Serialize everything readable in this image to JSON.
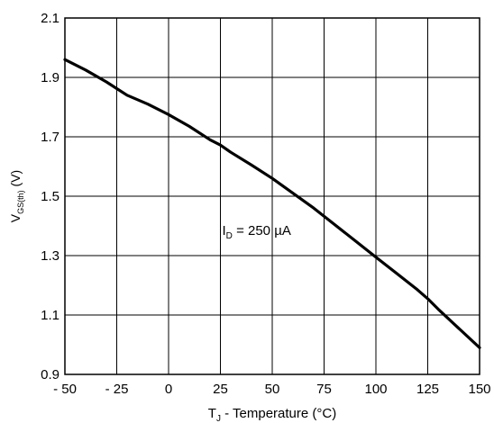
{
  "chart_data": {
    "type": "line",
    "xlim": [
      -50,
      150
    ],
    "ylim": [
      0.9,
      2.1
    ],
    "x_ticks": [
      -50,
      -25,
      0,
      25,
      50,
      75,
      100,
      125,
      150
    ],
    "y_ticks": [
      0.9,
      1.1,
      1.3,
      1.5,
      1.7,
      1.9,
      2.1
    ],
    "x_tick_labels": [
      "- 50",
      "- 25",
      "0",
      "25",
      "50",
      "75",
      "100",
      "125",
      "150"
    ],
    "y_tick_labels": [
      "0.9",
      "1.1",
      "1.3",
      "1.5",
      "1.7",
      "1.9",
      "2.1"
    ],
    "xlabel": {
      "prefix": "T",
      "sub": "J",
      "rest": " - Temperature (°C)"
    },
    "ylabel": {
      "prefix": "V",
      "sub": "GS(th)",
      "rest": " (V)"
    },
    "annotation": {
      "prefix": "I",
      "sub": "D",
      "rest": " = 250 µA",
      "x": 25,
      "y": 1.37
    },
    "grid": true,
    "series": [
      {
        "color": "#000000",
        "x": [
          -50,
          -40,
          -30,
          -20,
          -10,
          0,
          10,
          20,
          25,
          30,
          40,
          50,
          60,
          70,
          80,
          90,
          100,
          110,
          120,
          125,
          130,
          140,
          150
        ],
        "y": [
          1.96,
          1.925,
          1.885,
          1.84,
          1.81,
          1.775,
          1.735,
          1.69,
          1.672,
          1.648,
          1.605,
          1.56,
          1.51,
          1.46,
          1.405,
          1.35,
          1.295,
          1.24,
          1.185,
          1.155,
          1.12,
          1.055,
          0.99
        ]
      }
    ]
  }
}
